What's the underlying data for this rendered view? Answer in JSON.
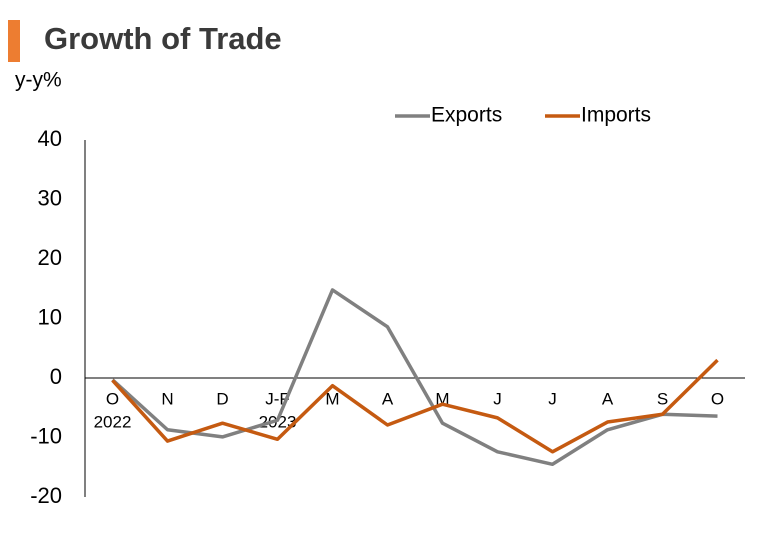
{
  "chart_data": {
    "type": "line",
    "title": "Growth of Trade",
    "y_label": "y-y%",
    "categories": [
      "O",
      "N",
      "D",
      "J-F",
      "M",
      "A",
      "M",
      "J",
      "J",
      "A",
      "S",
      "O"
    ],
    "category_years": [
      "2022",
      null,
      null,
      "2023",
      null,
      null,
      null,
      null,
      null,
      null,
      null,
      null
    ],
    "series": [
      {
        "name": "Exports",
        "color": "#808080",
        "values": [
          -0.3,
          -8.7,
          -9.9,
          -7.1,
          14.8,
          8.6,
          -7.6,
          -12.4,
          -14.5,
          -8.7,
          -6.1,
          -6.4
        ]
      },
      {
        "name": "Imports",
        "color": "#c55a11",
        "values": [
          -0.4,
          -10.6,
          -7.6,
          -10.3,
          -1.3,
          -7.9,
          -4.4,
          -6.7,
          -12.4,
          -7.4,
          -6.1,
          3.0
        ]
      }
    ],
    "ylim": [
      -20,
      40
    ],
    "yticks": [
      -20,
      -10,
      0,
      10,
      20,
      30,
      40
    ],
    "grid": false,
    "legend": "top"
  }
}
